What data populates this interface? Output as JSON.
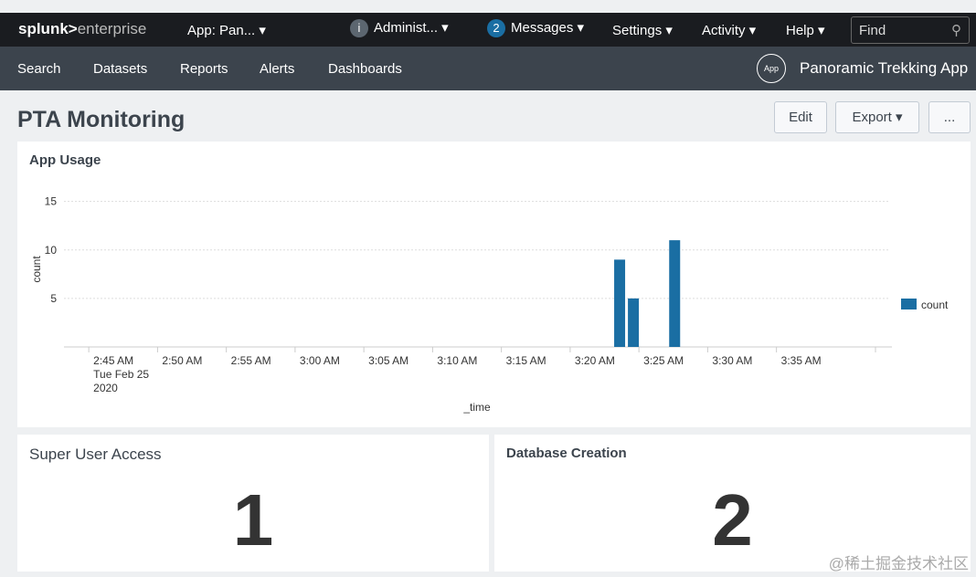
{
  "topbar": {
    "logo_bold": "splunk>",
    "logo_rest": "enterprise",
    "app": "App: Pan... ▾",
    "admin_badge": "i",
    "admin": "Administ... ▾",
    "messages_count": "2",
    "messages": "Messages ▾",
    "settings": "Settings ▾",
    "activity": "Activity ▾",
    "help": "Help ▾",
    "find_placeholder": "Find",
    "search_icon": "search-icon"
  },
  "nav": {
    "items": [
      "Search",
      "Datasets",
      "Reports",
      "Alerts",
      "Dashboards"
    ],
    "app_icon": "App",
    "app_name": "Panoramic Trekking App"
  },
  "page": {
    "title": "PTA Monitoring",
    "edit": "Edit",
    "export": "Export ▾",
    "more": "..."
  },
  "panels": {
    "usage_title": "App Usage",
    "super_title": "Super User Access",
    "super_value": "1",
    "db_title": "Database Creation",
    "db_value": "2"
  },
  "watermark": "@稀土掘金技术社区",
  "chart_data": {
    "type": "bar",
    "title": "App Usage",
    "xlabel": "_time",
    "ylabel": "count",
    "ylim": [
      0,
      16
    ],
    "yticks": [
      5,
      10,
      15
    ],
    "xrange_minutes": [
      -3,
      57
    ],
    "xticks": [
      {
        "m": 0,
        "label": "2:45 AM",
        "sub": [
          "Tue Feb 25",
          "2020"
        ]
      },
      {
        "m": 5,
        "label": "2:50 AM"
      },
      {
        "m": 10,
        "label": "2:55 AM"
      },
      {
        "m": 15,
        "label": "3:00 AM"
      },
      {
        "m": 20,
        "label": "3:05 AM"
      },
      {
        "m": 25,
        "label": "3:10 AM"
      },
      {
        "m": 30,
        "label": "3:15 AM"
      },
      {
        "m": 35,
        "label": "3:20 AM"
      },
      {
        "m": 40,
        "label": "3:25 AM"
      },
      {
        "m": 45,
        "label": "3:30 AM"
      },
      {
        "m": 50,
        "label": "3:35 AM"
      }
    ],
    "series": [
      {
        "name": "count",
        "color": "#1a6ea3",
        "points": [
          {
            "time": "3:23 AM",
            "m": 38,
            "value": 9
          },
          {
            "time": "3:24 AM",
            "m": 39,
            "value": 5
          },
          {
            "time": "3:27 AM",
            "m": 42,
            "value": 11
          }
        ]
      }
    ],
    "legend": "right"
  }
}
